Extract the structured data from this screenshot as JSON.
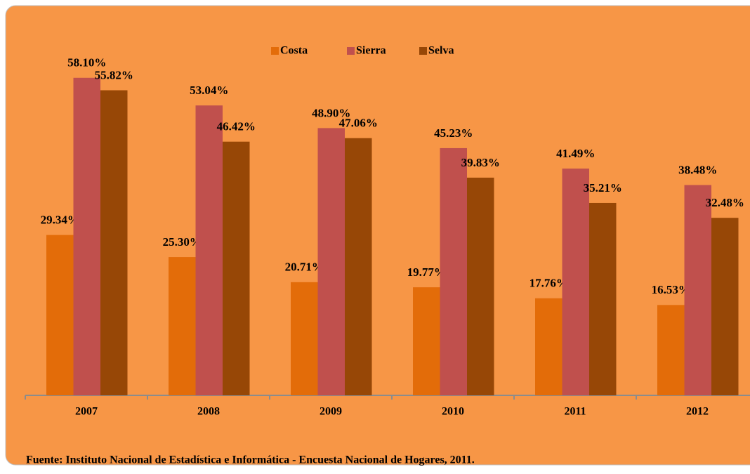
{
  "chart_data": {
    "type": "bar",
    "categories": [
      "2007",
      "2008",
      "2009",
      "2010",
      "2011",
      "2012"
    ],
    "series": [
      {
        "name": "Costa",
        "color": "#e36c09",
        "values": [
          29.34,
          25.3,
          20.71,
          19.77,
          17.76,
          16.53
        ],
        "value_labels": [
          "29.34%",
          "25.30%",
          "20.71%",
          "19.77%",
          "17.76%",
          "16.53%"
        ]
      },
      {
        "name": "Sierra",
        "color": "#c0504d",
        "values": [
          58.1,
          53.04,
          48.9,
          45.23,
          41.49,
          38.48
        ],
        "value_labels": [
          "58.10%",
          "53.04%",
          "48.90%",
          "45.23%",
          "41.49%",
          "38.48%"
        ]
      },
      {
        "name": "Selva",
        "color": "#974706",
        "values": [
          55.82,
          46.42,
          47.06,
          39.83,
          35.21,
          32.48
        ],
        "value_labels": [
          "55.82%",
          "46.42%",
          "47.06%",
          "39.83%",
          "35.21%",
          "32.48%"
        ]
      }
    ],
    "ylim": [
      0,
      60
    ],
    "legend": "top",
    "source": "Fuente: Instituto Nacional de Estadística e Informática - Encuesta Nacional de Hogares, 2011."
  }
}
